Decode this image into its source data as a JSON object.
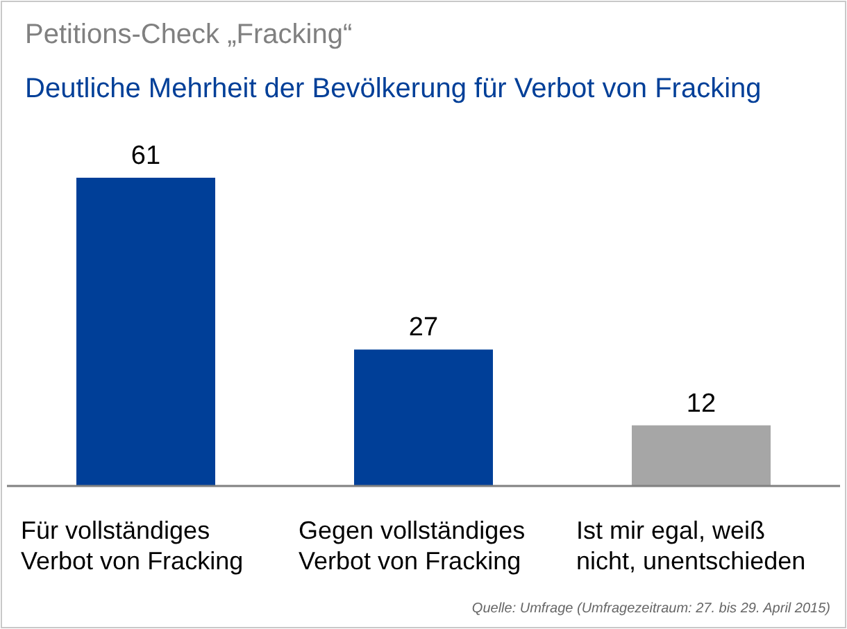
{
  "chart_data": {
    "type": "bar",
    "title": "Petitions-Check „Fracking“",
    "subtitle": "Deutliche Mehrheit der Bevölkerung für Verbot von Fracking",
    "categories": [
      "Für vollständiges Verbot von Fracking",
      "Gegen vollständiges Verbot von Fracking",
      "Ist mir egal, weiß nicht, unentschieden"
    ],
    "values": [
      61,
      27,
      12
    ],
    "colors": [
      "#003f98",
      "#003f98",
      "#a6a6a6"
    ],
    "data_labels": true,
    "annotations": [
      "Quelle: Umfrage (Umfragezeitraum: 27. bis 29. April 2015)"
    ]
  }
}
